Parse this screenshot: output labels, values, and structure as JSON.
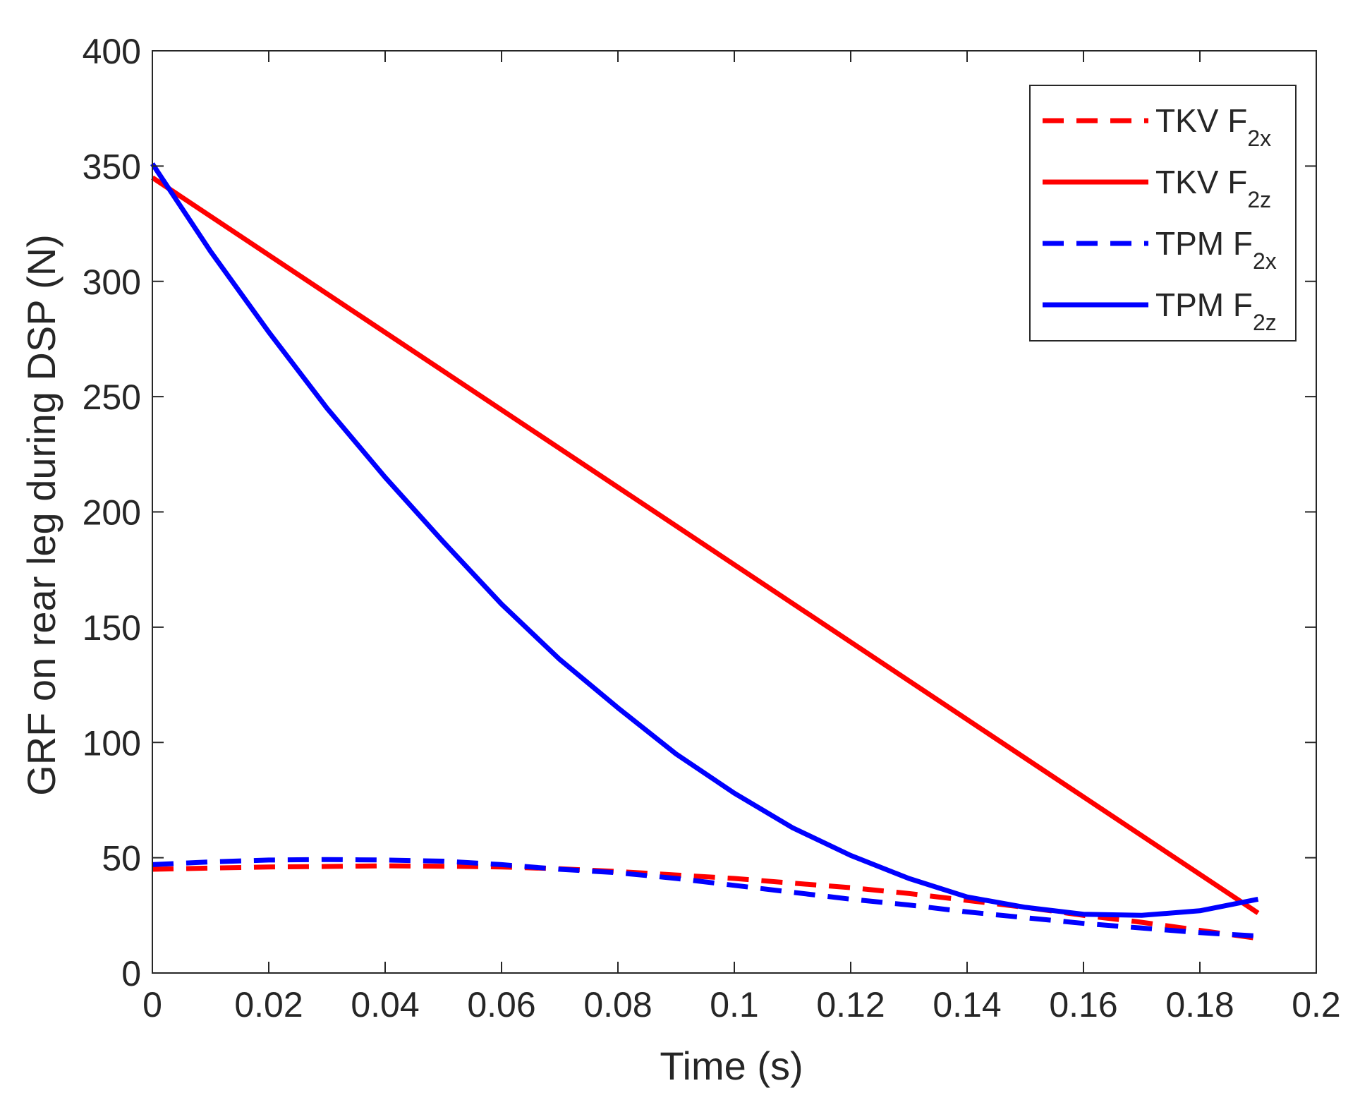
{
  "chart_data": {
    "type": "line",
    "title": "",
    "xlabel": "Time (s)",
    "ylabel": "GRF on rear leg during DSP (N)",
    "xlim": [
      0,
      0.2
    ],
    "ylim": [
      0,
      400
    ],
    "xticks": [
      0,
      0.02,
      0.04,
      0.06,
      0.08,
      0.1,
      0.12,
      0.14,
      0.16,
      0.18,
      0.2
    ],
    "yticks": [
      0,
      50,
      100,
      150,
      200,
      250,
      300,
      350,
      400
    ],
    "grid": false,
    "legend_position": "top-right",
    "series": [
      {
        "name": "TKV F2x",
        "label_main": "TKV F",
        "label_sub": "2x",
        "color": "#ff0000",
        "style": "dashed",
        "x": [
          0,
          0.01,
          0.02,
          0.03,
          0.04,
          0.05,
          0.06,
          0.07,
          0.08,
          0.09,
          0.1,
          0.11,
          0.12,
          0.13,
          0.14,
          0.15,
          0.16,
          0.17,
          0.18,
          0.19
        ],
        "values": [
          45,
          45.5,
          46,
          46.2,
          46.5,
          46.3,
          46,
          45.2,
          44,
          42.5,
          41,
          39,
          37,
          34.5,
          31.5,
          28.5,
          25,
          22,
          18.5,
          15
        ]
      },
      {
        "name": "TKV F2z",
        "label_main": "TKV F",
        "label_sub": "2z",
        "color": "#ff0000",
        "style": "solid",
        "x": [
          0,
          0.19
        ],
        "values": [
          345,
          26
        ]
      },
      {
        "name": "TPM F2x",
        "label_main": "TPM F",
        "label_sub": "2x",
        "color": "#0000ff",
        "style": "dashed",
        "x": [
          0,
          0.01,
          0.02,
          0.03,
          0.04,
          0.05,
          0.06,
          0.07,
          0.08,
          0.09,
          0.1,
          0.11,
          0.12,
          0.13,
          0.14,
          0.15,
          0.16,
          0.17,
          0.18,
          0.19
        ],
        "values": [
          47,
          48.2,
          49,
          49.2,
          49,
          48.5,
          47,
          45,
          43.5,
          41,
          38,
          35,
          32,
          29.5,
          26.5,
          24,
          21.5,
          19.5,
          17.5,
          16
        ]
      },
      {
        "name": "TPM F2z",
        "label_main": "TPM F",
        "label_sub": "2z",
        "color": "#0000ff",
        "style": "solid",
        "x": [
          0,
          0.01,
          0.02,
          0.03,
          0.04,
          0.05,
          0.06,
          0.07,
          0.08,
          0.09,
          0.1,
          0.11,
          0.12,
          0.13,
          0.14,
          0.15,
          0.16,
          0.17,
          0.18,
          0.19
        ],
        "values": [
          351,
          313,
          278,
          245,
          215,
          187,
          160,
          136,
          115,
          95,
          78,
          63,
          51,
          41,
          33,
          28.5,
          25.5,
          25,
          27,
          32
        ]
      }
    ]
  }
}
